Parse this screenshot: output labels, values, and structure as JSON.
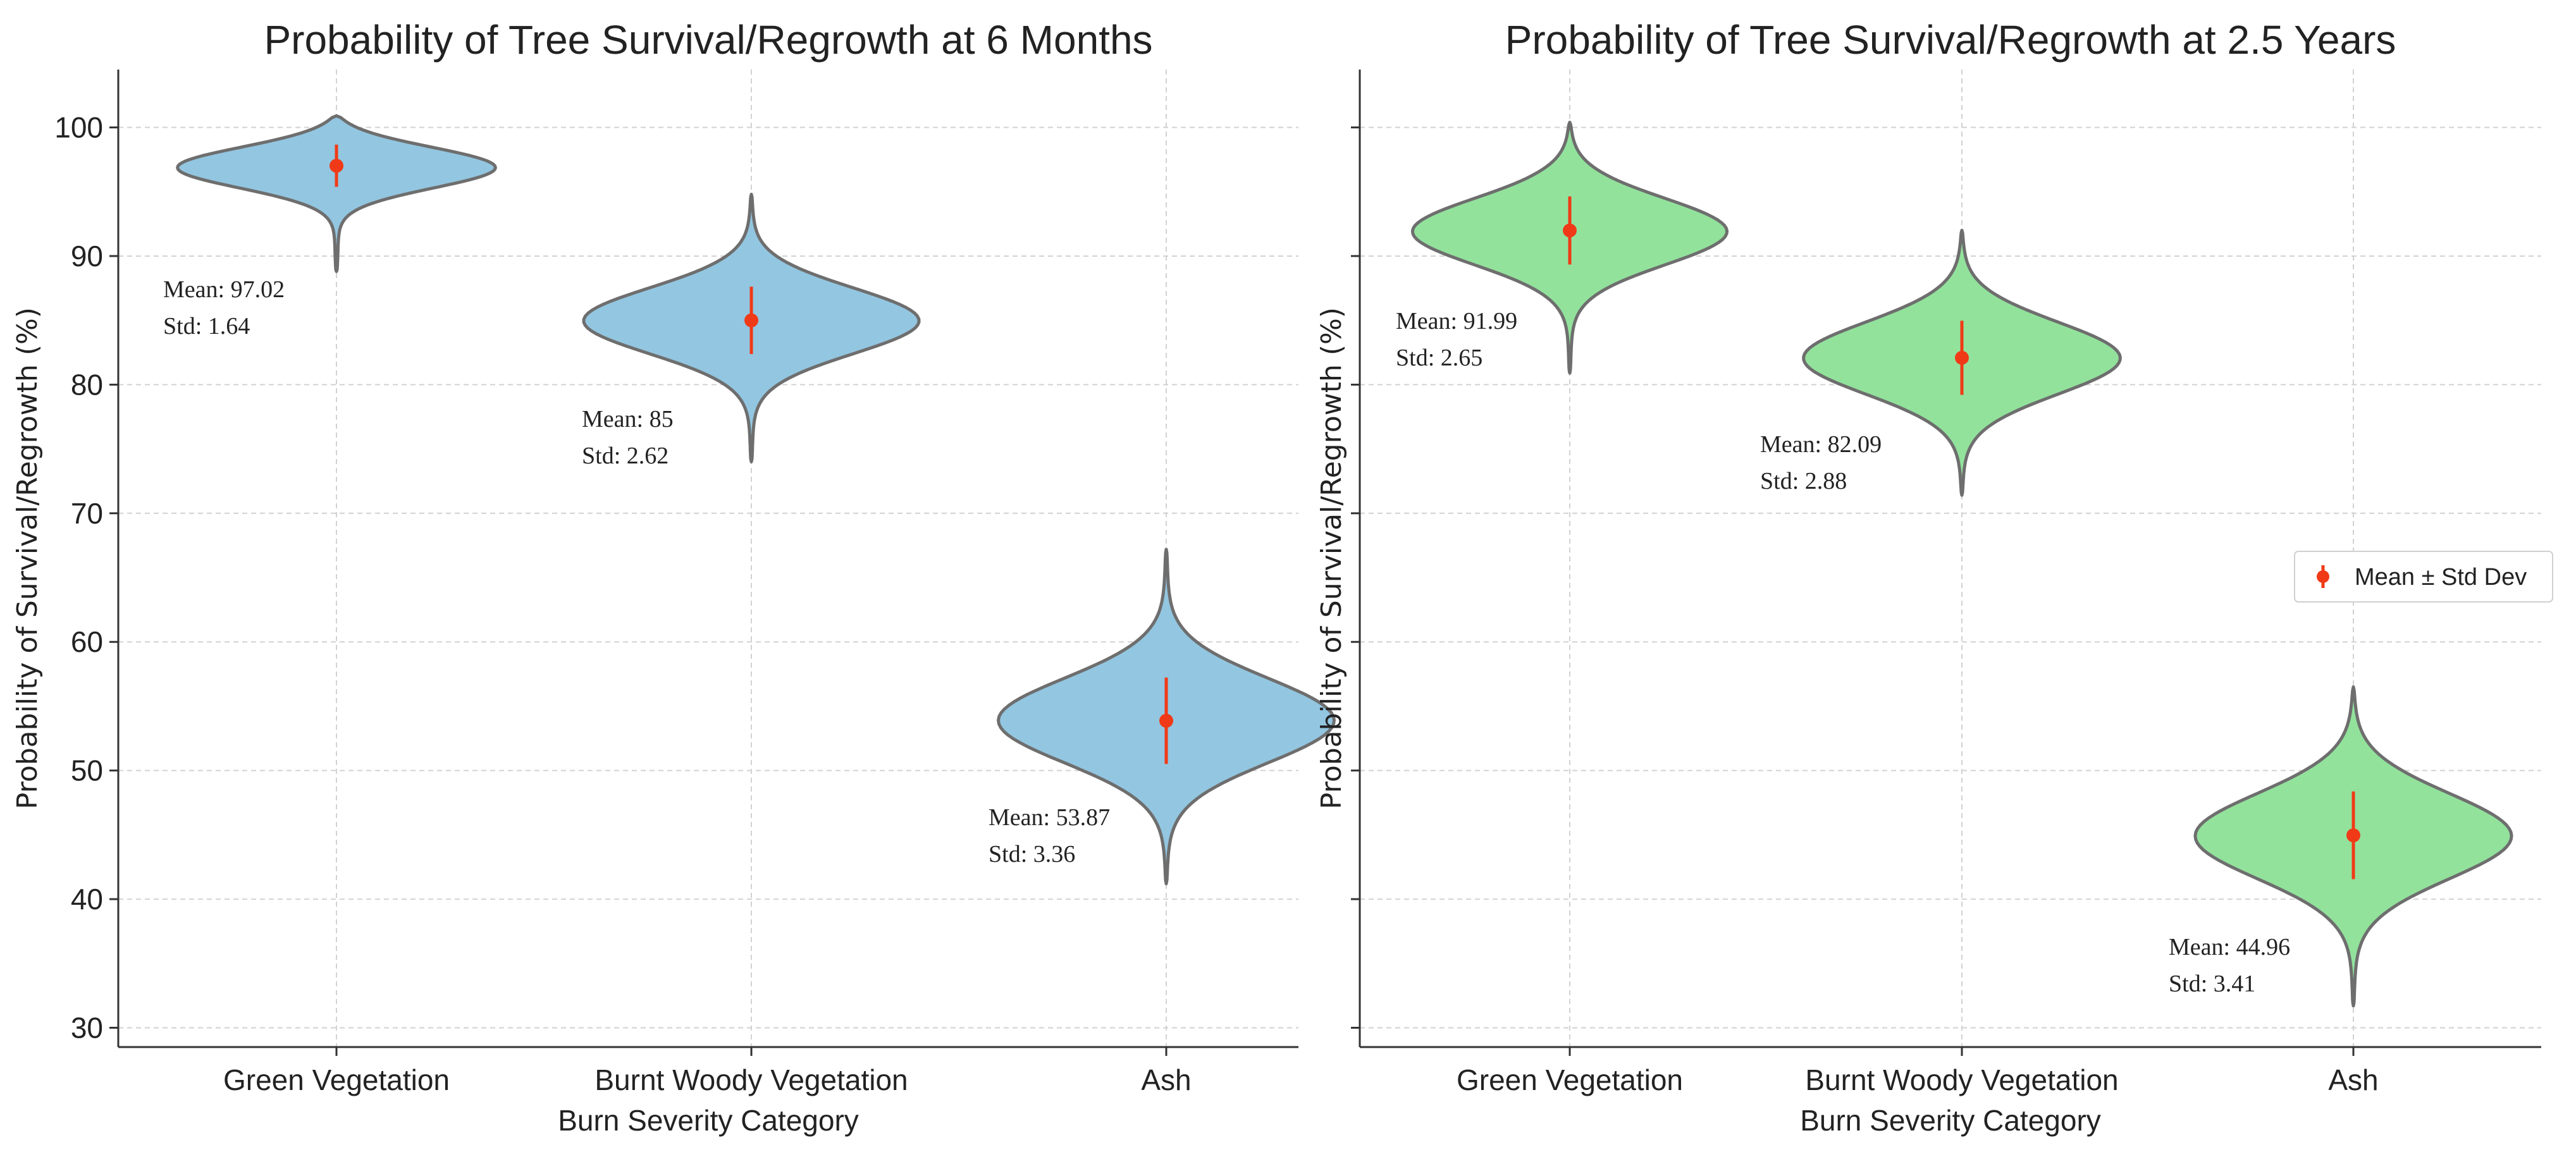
{
  "chart_data": [
    {
      "type": "violin",
      "title": "Probability of Tree Survival/Regrowth at 6 Months",
      "xlabel": "Burn Severity Category",
      "ylabel": "Probability of Survival/Regrowth (%)",
      "ylim": [
        28.5,
        104.5
      ],
      "yticks": [
        30,
        40,
        50,
        60,
        70,
        80,
        90,
        100
      ],
      "categories": [
        "Green Vegetation",
        "Burnt Woody Vegetation",
        "Ash"
      ],
      "violin_color": "#93c6e0",
      "means": [
        97.02,
        85,
        53.87
      ],
      "stds": [
        1.64,
        2.62,
        3.36
      ],
      "ranges": [
        [
          88.8,
          100.9
        ],
        [
          74,
          94.8
        ],
        [
          41.2,
          67.2
        ]
      ],
      "annotations": [
        {
          "mean": "Mean: 97.02",
          "std": "Std: 1.64"
        },
        {
          "mean": "Mean: 85",
          "std": "Std: 2.62"
        },
        {
          "mean": "Mean: 53.87",
          "std": "Std: 3.36"
        }
      ],
      "grid": true
    },
    {
      "type": "violin",
      "title": "Probability of Tree Survival/Regrowth at 2.5 Years",
      "xlabel": "Burn Severity Category",
      "ylabel": "Probability of Survival/Regrowth (%)",
      "ylim": [
        28.5,
        104.5
      ],
      "yticks": [
        30,
        40,
        50,
        60,
        70,
        80,
        90,
        100
      ],
      "categories": [
        "Green Vegetation",
        "Burnt Woody Vegetation",
        "Ash"
      ],
      "violin_color": "#92e29c",
      "means": [
        91.99,
        82.09,
        44.96
      ],
      "stds": [
        2.65,
        2.88,
        3.41
      ],
      "ranges": [
        [
          80.9,
          100.4
        ],
        [
          71.4,
          92
        ],
        [
          31.7,
          56.5
        ]
      ],
      "annotations": [
        {
          "mean": "Mean: 91.99",
          "std": "Std: 2.65"
        },
        {
          "mean": "Mean: 82.09",
          "std": "Std: 2.88"
        },
        {
          "mean": "Mean: 44.96",
          "std": "Std: 3.41"
        }
      ],
      "grid": true,
      "legend": {
        "label": "Mean ± Std Dev",
        "position": "center-right"
      }
    }
  ],
  "colors": {
    "mean_marker": "#f03a17",
    "violin_edge": "#6e6e6e"
  }
}
